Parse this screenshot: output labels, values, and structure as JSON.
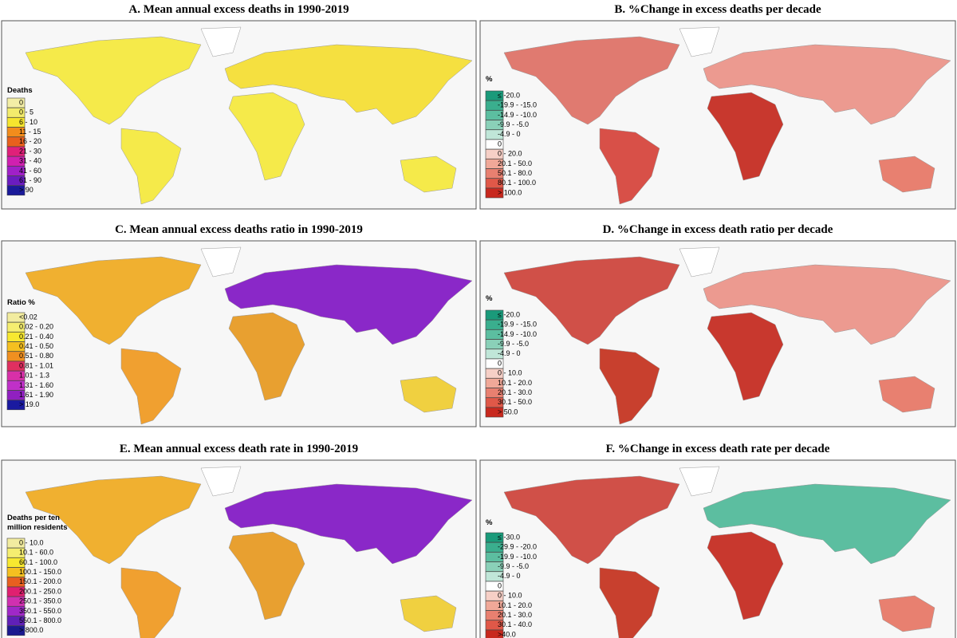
{
  "panels": [
    {
      "title": "A. Mean annual excess deaths in 1990-2019",
      "legend_title": [
        "Deaths"
      ],
      "legend": [
        {
          "label": "0",
          "color": "#f3eea6"
        },
        {
          "label": "0 - 5",
          "color": "#f3ec6c"
        },
        {
          "label": "6 - 10",
          "color": "#f6e52e"
        },
        {
          "label": "11 - 15",
          "color": "#f28c1c"
        },
        {
          "label": "16 - 20",
          "color": "#e8601c"
        },
        {
          "label": "21 - 30",
          "color": "#e0207a"
        },
        {
          "label": "31 - 40",
          "color": "#d020b0"
        },
        {
          "label": "41 - 60",
          "color": "#a020c8"
        },
        {
          "label": "61 - 90",
          "color": "#6a1cc0"
        },
        {
          "label": "> 90",
          "color": "#1a1a9a"
        }
      ]
    },
    {
      "title": "B. %Change in excess deaths per decade",
      "legend_title": [
        "%"
      ],
      "legend": [
        {
          "label": "≤ -20.0",
          "color": "#1a9a7a"
        },
        {
          "label": "-19.9 - -15.0",
          "color": "#3aae8e"
        },
        {
          "label": "-14.9 - -10.0",
          "color": "#5cbea0"
        },
        {
          "label": "-9.9 - -5.0",
          "color": "#8ad0b8"
        },
        {
          "label": "-4.9 - 0",
          "color": "#c0e6d8"
        },
        {
          "label": "0",
          "color": "#ffffff"
        },
        {
          "label": "0 - 20.0",
          "color": "#f6cfc6"
        },
        {
          "label": "20.1 - 50.0",
          "color": "#f0a898"
        },
        {
          "label": "50.1 - 80.0",
          "color": "#e88070"
        },
        {
          "label": "80.1 - 100.0",
          "color": "#e05848"
        },
        {
          "label": "> 100.0",
          "color": "#c8281e"
        }
      ]
    },
    {
      "title": "C. Mean annual excess deaths ratio in 1990-2019",
      "legend_title": [
        "Ratio %"
      ],
      "legend": [
        {
          "label": "<0.02",
          "color": "#f2eca0"
        },
        {
          "label": "0.02 - 0.20",
          "color": "#f5ee70"
        },
        {
          "label": "0.21 - 0.40",
          "color": "#f7e830"
        },
        {
          "label": "0.41 - 0.50",
          "color": "#f5c020"
        },
        {
          "label": "0.51 - 0.80",
          "color": "#f09020"
        },
        {
          "label": "0.81 - 1.01",
          "color": "#e03060"
        },
        {
          "label": "1.01 - 1.3",
          "color": "#d830a8"
        },
        {
          "label": "1.31 - 1.60",
          "color": "#c030c8"
        },
        {
          "label": "1.61 - 1.90",
          "color": "#9020c0"
        },
        {
          "label": "> 19.0",
          "color": "#1a1aa0"
        }
      ]
    },
    {
      "title": "D. %Change in excess death ratio per decade",
      "legend_title": [
        "%"
      ],
      "legend": [
        {
          "label": "≤ -20.0",
          "color": "#1a9a7a"
        },
        {
          "label": "-19.9 - -15.0",
          "color": "#3aae8e"
        },
        {
          "label": "-14.9 - -10.0",
          "color": "#5cbea0"
        },
        {
          "label": "-9.9 - -5.0",
          "color": "#8ad0b8"
        },
        {
          "label": "-4.9 - 0",
          "color": "#c0e6d8"
        },
        {
          "label": "0",
          "color": "#ffffff"
        },
        {
          "label": "0 - 10.0",
          "color": "#f6cfc6"
        },
        {
          "label": "10.1 - 20.0",
          "color": "#f0a898"
        },
        {
          "label": "20.1 - 30.0",
          "color": "#e88070"
        },
        {
          "label": "30.1 - 50.0",
          "color": "#e05848"
        },
        {
          "label": "> 50.0",
          "color": "#c8281e"
        }
      ]
    },
    {
      "title": "E. Mean annual excess death rate in 1990-2019",
      "legend_title": [
        "Deaths per ten",
        "million residents"
      ],
      "legend": [
        {
          "label": "0 - 10.0",
          "color": "#f2eca0"
        },
        {
          "label": "10.1 - 60.0",
          "color": "#f5ee70"
        },
        {
          "label": "60.1 - 100.0",
          "color": "#f7e830"
        },
        {
          "label": "100.1 - 150.0",
          "color": "#f5c020"
        },
        {
          "label": "150.1 - 200.0",
          "color": "#e86020"
        },
        {
          "label": "200.1 - 250.0",
          "color": "#e02070"
        },
        {
          "label": "250.1 - 350.0",
          "color": "#d030b0"
        },
        {
          "label": "350.1 - 550.0",
          "color": "#a028c8"
        },
        {
          "label": "550.1 - 800.0",
          "color": "#6020b8"
        },
        {
          "label": "> 800.0",
          "color": "#1a1a90"
        }
      ]
    },
    {
      "title": "F. %Change in excess death rate per decade",
      "legend_title": [
        "%"
      ],
      "legend": [
        {
          "label": "≤ -30.0",
          "color": "#1a9a7a"
        },
        {
          "label": "-29.9 - -20.0",
          "color": "#3aae8e"
        },
        {
          "label": "-19.9 - -10.0",
          "color": "#5cbea0"
        },
        {
          "label": "-9.9 - -5.0",
          "color": "#8ad0b8"
        },
        {
          "label": "-4.9 - 0",
          "color": "#c0e6d8"
        },
        {
          "label": "0",
          "color": "#ffffff"
        },
        {
          "label": "0 - 10.0",
          "color": "#f6cfc6"
        },
        {
          "label": "10.1 - 20.0",
          "color": "#f0a898"
        },
        {
          "label": "20.1 - 30.0",
          "color": "#e88070"
        },
        {
          "label": "30.1 - 40.0",
          "color": "#e05848"
        },
        {
          "label": ">40.0",
          "color": "#c8281e"
        }
      ]
    }
  ]
}
